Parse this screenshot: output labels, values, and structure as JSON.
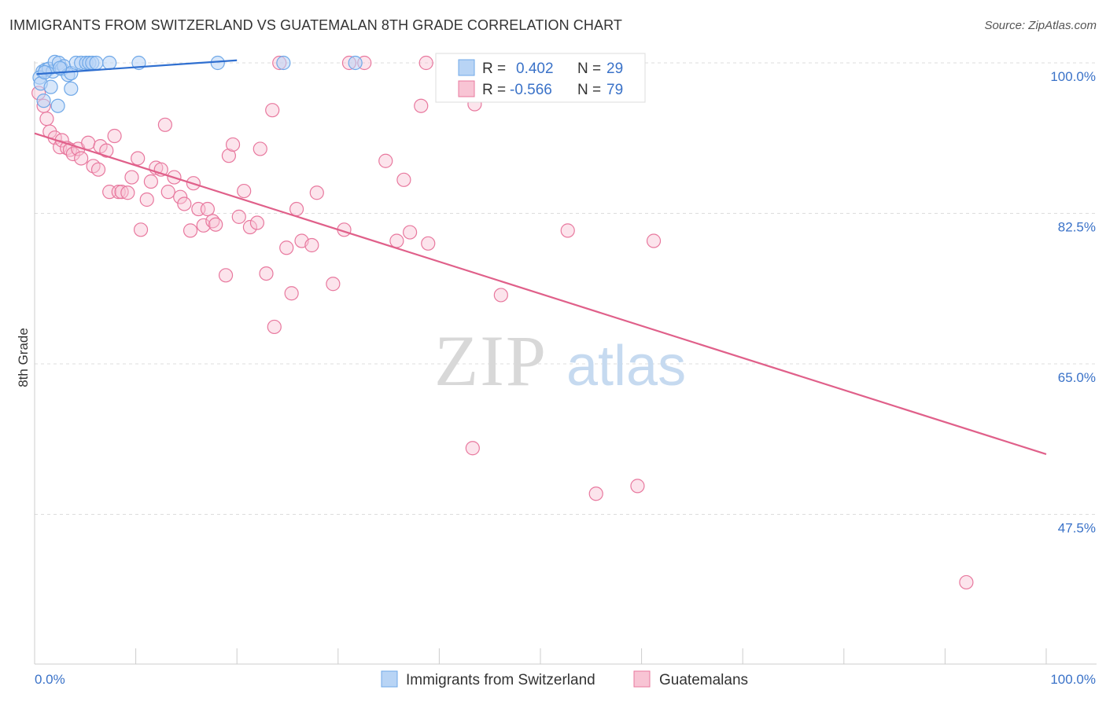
{
  "title": "IMMIGRANTS FROM SWITZERLAND VS GUATEMALAN 8TH GRADE CORRELATION CHART",
  "source": "Source: ZipAtlas.com",
  "watermark": {
    "zip": "ZIP",
    "atlas": "atlas"
  },
  "legend": {
    "r_label": "R =",
    "n_label": "N =",
    "series": [
      {
        "name": "Immigrants from Switzerland",
        "r": "0.402",
        "n": "29",
        "color": "#6fa8e8",
        "fill": "#b8d4f5"
      },
      {
        "name": "Guatemalans",
        "r": "-0.566",
        "n": "79",
        "color": "#e8789e",
        "fill": "#f8c4d4"
      }
    ]
  },
  "chart_data": {
    "type": "scatter",
    "title": "IMMIGRANTS FROM SWITZERLAND VS GUATEMALAN 8TH GRADE CORRELATION CHART",
    "xlabel": "",
    "ylabel": "8th Grade",
    "xlim": [
      0,
      100
    ],
    "ylim": [
      33,
      101
    ],
    "x_tick_labels": [
      "0.0%",
      "100.0%"
    ],
    "y_ticks": [
      100.0,
      82.5,
      65.0,
      47.5
    ],
    "y_tick_labels": [
      "100.0%",
      "82.5%",
      "65.0%",
      "47.5%"
    ],
    "series": [
      {
        "name": "Immigrants from Switzerland",
        "color": "#3a78d4",
        "trend": {
          "x": [
            0.2,
            20
          ],
          "y": [
            98.7,
            100.3
          ]
        },
        "points": [
          [
            0.8,
            99.0
          ],
          [
            1.1,
            99.2
          ],
          [
            1.4,
            99.3
          ],
          [
            1.8,
            99.0
          ],
          [
            2.0,
            100.1
          ],
          [
            2.4,
            100.0
          ],
          [
            2.7,
            99.3
          ],
          [
            2.9,
            99.6
          ],
          [
            3.3,
            98.6
          ],
          [
            3.6,
            98.8
          ],
          [
            4.1,
            100.0
          ],
          [
            4.6,
            100.0
          ],
          [
            5.1,
            100.0
          ],
          [
            5.4,
            100.0
          ],
          [
            5.7,
            100.0
          ],
          [
            6.1,
            100.0
          ],
          [
            7.4,
            100.0
          ],
          [
            10.3,
            100.0
          ],
          [
            18.1,
            100.0
          ],
          [
            24.6,
            100.0
          ],
          [
            31.7,
            100.0
          ],
          [
            0.5,
            98.3
          ],
          [
            0.6,
            97.6
          ],
          [
            0.9,
            95.6
          ],
          [
            1.6,
            97.2
          ],
          [
            2.3,
            95.0
          ],
          [
            3.6,
            97.0
          ],
          [
            1.0,
            98.9
          ],
          [
            2.5,
            99.4
          ]
        ]
      },
      {
        "name": "Guatemalans",
        "color": "#e8789e",
        "trend": {
          "x": [
            0,
            100
          ],
          "y": [
            91.8,
            54.5
          ]
        },
        "points": [
          [
            0.4,
            96.5
          ],
          [
            0.9,
            95.0
          ],
          [
            1.2,
            93.5
          ],
          [
            1.5,
            92.0
          ],
          [
            2.0,
            91.3
          ],
          [
            2.5,
            90.2
          ],
          [
            2.7,
            91.0
          ],
          [
            3.2,
            90.1
          ],
          [
            3.5,
            89.9
          ],
          [
            3.8,
            89.4
          ],
          [
            4.3,
            90.0
          ],
          [
            4.6,
            88.9
          ],
          [
            5.3,
            90.7
          ],
          [
            5.8,
            88.0
          ],
          [
            6.3,
            87.6
          ],
          [
            6.5,
            90.3
          ],
          [
            7.1,
            89.8
          ],
          [
            7.4,
            85.0
          ],
          [
            7.9,
            91.5
          ],
          [
            8.3,
            85.0
          ],
          [
            8.6,
            85.0
          ],
          [
            9.2,
            84.9
          ],
          [
            9.6,
            86.7
          ],
          [
            10.2,
            88.9
          ],
          [
            10.5,
            80.6
          ],
          [
            11.1,
            84.1
          ],
          [
            11.5,
            86.2
          ],
          [
            12.0,
            87.8
          ],
          [
            12.5,
            87.6
          ],
          [
            12.9,
            92.8
          ],
          [
            13.2,
            85.0
          ],
          [
            13.8,
            86.7
          ],
          [
            14.4,
            84.4
          ],
          [
            14.8,
            83.6
          ],
          [
            15.4,
            80.5
          ],
          [
            15.7,
            86.0
          ],
          [
            16.2,
            83.0
          ],
          [
            16.7,
            81.1
          ],
          [
            17.1,
            83.0
          ],
          [
            17.6,
            81.6
          ],
          [
            17.9,
            81.2
          ],
          [
            18.9,
            75.3
          ],
          [
            19.2,
            89.2
          ],
          [
            19.6,
            90.5
          ],
          [
            20.2,
            82.1
          ],
          [
            20.7,
            85.1
          ],
          [
            21.3,
            80.9
          ],
          [
            22.0,
            81.4
          ],
          [
            22.3,
            90.0
          ],
          [
            22.9,
            75.5
          ],
          [
            23.5,
            94.5
          ],
          [
            23.7,
            69.3
          ],
          [
            24.2,
            100.0
          ],
          [
            24.9,
            78.5
          ],
          [
            25.4,
            73.2
          ],
          [
            25.9,
            83.0
          ],
          [
            26.4,
            79.3
          ],
          [
            27.4,
            78.8
          ],
          [
            27.9,
            84.9
          ],
          [
            29.5,
            74.3
          ],
          [
            30.6,
            80.6
          ],
          [
            31.1,
            100.0
          ],
          [
            32.6,
            100.0
          ],
          [
            34.7,
            88.6
          ],
          [
            35.8,
            79.3
          ],
          [
            36.5,
            86.4
          ],
          [
            37.1,
            80.3
          ],
          [
            38.7,
            100.0
          ],
          [
            38.9,
            79.0
          ],
          [
            38.2,
            95.0
          ],
          [
            42.2,
            100.0
          ],
          [
            43.3,
            55.2
          ],
          [
            43.5,
            95.2
          ],
          [
            46.1,
            73.0
          ],
          [
            52.7,
            80.5
          ],
          [
            55.5,
            49.9
          ],
          [
            58.8,
            100.0
          ],
          [
            59.6,
            50.8
          ],
          [
            61.2,
            79.3
          ],
          [
            92.1,
            39.6
          ]
        ]
      }
    ]
  }
}
